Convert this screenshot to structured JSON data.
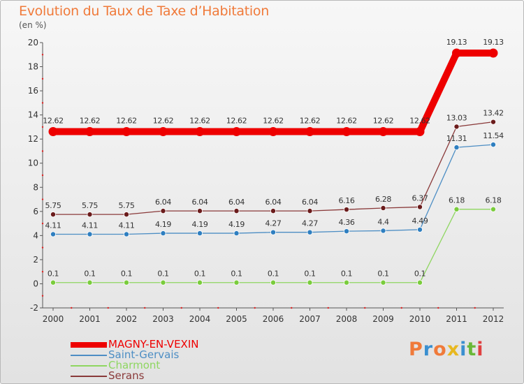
{
  "header": {
    "title": "Evolution du Taux de Taxe d’Habitation",
    "unit": "(en %)"
  },
  "chart_data": {
    "type": "line",
    "title": "Evolution du Taux de Taxe d’Habitation",
    "ylabel": "(en %)",
    "xlabel": "",
    "x": [
      "2000",
      "2001",
      "2002",
      "2003",
      "2004",
      "2005",
      "2006",
      "2007",
      "2008",
      "2009",
      "2010",
      "2011",
      "2012"
    ],
    "ylim": [
      -2,
      20
    ],
    "yticks": [
      -2,
      0,
      2,
      4,
      6,
      8,
      10,
      12,
      14,
      16,
      18,
      20
    ],
    "grid": false,
    "legend_position": "bottom-left",
    "series": [
      {
        "name": "MAGNY-EN-VEXIN",
        "color": "#ee0000",
        "emphasis": true,
        "values": [
          12.62,
          12.62,
          12.62,
          12.62,
          12.62,
          12.62,
          12.62,
          12.62,
          12.62,
          12.62,
          12.62,
          19.13,
          19.13
        ],
        "labels": [
          "12.62",
          "12.62",
          "12.62",
          "12.62",
          "12.62",
          "12.62",
          "12.62",
          "12.62",
          "12.62",
          "12.62",
          "12.62",
          "19.13",
          "19.13"
        ]
      },
      {
        "name": "Saint-Gervais",
        "color": "#4d8ec4",
        "marker_color": "#2f7fc0",
        "values": [
          4.11,
          4.11,
          4.11,
          4.19,
          4.19,
          4.19,
          4.27,
          4.27,
          4.36,
          4.4,
          4.49,
          11.31,
          11.54
        ],
        "labels": [
          "4.11",
          "4.11",
          "4.11",
          "4.19",
          "4.19",
          "4.19",
          "4.27",
          "4.27",
          "4.36",
          "4.4",
          "4.49",
          "11.31",
          "11.54"
        ]
      },
      {
        "name": "Charmont",
        "color": "#8ed660",
        "marker_color": "#7acc3c",
        "values": [
          0.1,
          0.1,
          0.1,
          0.1,
          0.1,
          0.1,
          0.1,
          0.1,
          0.1,
          0.1,
          0.1,
          6.18,
          6.18
        ],
        "labels": [
          "0.1",
          "0.1",
          "0.1",
          "0.1",
          "0.1",
          "0.1",
          "0.1",
          "0.1",
          "0.1",
          "0.1",
          "0.1",
          "6.18",
          "6.18"
        ]
      },
      {
        "name": "Serans",
        "color": "#8a3a3a",
        "marker_color": "#6b1c1c",
        "values": [
          5.75,
          5.75,
          5.75,
          6.04,
          6.04,
          6.04,
          6.04,
          6.04,
          6.16,
          6.28,
          6.37,
          13.03,
          13.42
        ],
        "labels": [
          "5.75",
          "5.75",
          "5.75",
          "6.04",
          "6.04",
          "6.04",
          "6.04",
          "6.04",
          "6.16",
          "6.28",
          "6.37",
          "13.03",
          "13.42"
        ]
      }
    ]
  },
  "legend": {
    "items": [
      {
        "label": "MAGNY-EN-VEXIN",
        "color": "#ee0000"
      },
      {
        "label": "Saint-Gervais",
        "color": "#4d8ec4"
      },
      {
        "label": "Charmont",
        "color": "#8ed660"
      },
      {
        "label": "Serans",
        "color": "#8a3a3a"
      }
    ]
  },
  "logo": {
    "text": "Proxiti",
    "colors": [
      "#f07a3a",
      "#3a8fd0",
      "#f07a3a",
      "#e8b820",
      "#3a8fd0",
      "#6ab838",
      "#e04040"
    ]
  }
}
